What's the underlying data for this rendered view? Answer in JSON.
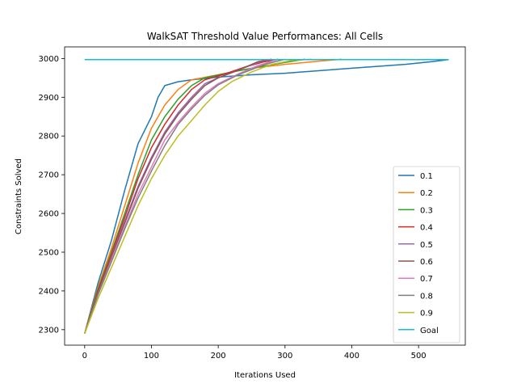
{
  "chart_data": {
    "type": "line",
    "title": "WalkSAT Threshold Value Performances: All Cells",
    "xlabel": "Iterations Used",
    "ylabel": "Constraints Solved",
    "xlim": [
      -30,
      570
    ],
    "ylim": [
      2260,
      3030
    ],
    "xticks": [
      0,
      100,
      200,
      300,
      400,
      500
    ],
    "yticks": [
      2300,
      2400,
      2500,
      2600,
      2700,
      2800,
      2900,
      3000
    ],
    "grid": false,
    "legend_position": "lower-right",
    "series": [
      {
        "name": "0.1",
        "color": "#1f77b4",
        "points": [
          [
            0,
            2290
          ],
          [
            20,
            2420
          ],
          [
            40,
            2530
          ],
          [
            60,
            2660
          ],
          [
            80,
            2780
          ],
          [
            100,
            2850
          ],
          [
            110,
            2900
          ],
          [
            120,
            2930
          ],
          [
            140,
            2940
          ],
          [
            160,
            2945
          ],
          [
            200,
            2952
          ],
          [
            250,
            2958
          ],
          [
            300,
            2962
          ],
          [
            400,
            2975
          ],
          [
            480,
            2985
          ],
          [
            520,
            2992
          ],
          [
            545,
            2997
          ]
        ]
      },
      {
        "name": "0.2",
        "color": "#ff7f0e",
        "points": [
          [
            0,
            2290
          ],
          [
            20,
            2410
          ],
          [
            40,
            2510
          ],
          [
            60,
            2620
          ],
          [
            80,
            2730
          ],
          [
            100,
            2820
          ],
          [
            120,
            2880
          ],
          [
            140,
            2920
          ],
          [
            160,
            2945
          ],
          [
            200,
            2958
          ],
          [
            250,
            2975
          ],
          [
            300,
            2985
          ],
          [
            350,
            2993
          ],
          [
            385,
            2998
          ]
        ]
      },
      {
        "name": "0.3",
        "color": "#2ca02c",
        "points": [
          [
            0,
            2290
          ],
          [
            20,
            2405
          ],
          [
            40,
            2500
          ],
          [
            60,
            2600
          ],
          [
            80,
            2700
          ],
          [
            100,
            2790
          ],
          [
            120,
            2850
          ],
          [
            140,
            2895
          ],
          [
            160,
            2930
          ],
          [
            180,
            2950
          ],
          [
            220,
            2965
          ],
          [
            260,
            2978
          ],
          [
            300,
            2990
          ],
          [
            330,
            2998
          ]
        ]
      },
      {
        "name": "0.4",
        "color": "#d62728",
        "points": [
          [
            0,
            2290
          ],
          [
            20,
            2400
          ],
          [
            40,
            2495
          ],
          [
            60,
            2590
          ],
          [
            80,
            2690
          ],
          [
            100,
            2770
          ],
          [
            120,
            2830
          ],
          [
            140,
            2880
          ],
          [
            160,
            2920
          ],
          [
            180,
            2945
          ],
          [
            210,
            2960
          ],
          [
            240,
            2978
          ],
          [
            270,
            2992
          ],
          [
            290,
            2998
          ]
        ]
      },
      {
        "name": "0.5",
        "color": "#9467bd",
        "points": [
          [
            0,
            2290
          ],
          [
            20,
            2395
          ],
          [
            40,
            2490
          ],
          [
            60,
            2580
          ],
          [
            80,
            2670
          ],
          [
            100,
            2745
          ],
          [
            120,
            2810
          ],
          [
            140,
            2860
          ],
          [
            160,
            2900
          ],
          [
            180,
            2935
          ],
          [
            200,
            2950
          ],
          [
            230,
            2970
          ],
          [
            260,
            2990
          ],
          [
            275,
            2998
          ]
        ]
      },
      {
        "name": "0.6",
        "color": "#8c564b",
        "points": [
          [
            0,
            2290
          ],
          [
            20,
            2395
          ],
          [
            40,
            2488
          ],
          [
            60,
            2575
          ],
          [
            80,
            2665
          ],
          [
            100,
            2740
          ],
          [
            120,
            2805
          ],
          [
            140,
            2855
          ],
          [
            160,
            2895
          ],
          [
            180,
            2930
          ],
          [
            200,
            2950
          ],
          [
            230,
            2970
          ],
          [
            260,
            2992
          ],
          [
            280,
            2998
          ]
        ]
      },
      {
        "name": "0.7",
        "color": "#e377c2",
        "points": [
          [
            0,
            2290
          ],
          [
            20,
            2390
          ],
          [
            40,
            2480
          ],
          [
            60,
            2565
          ],
          [
            80,
            2650
          ],
          [
            100,
            2720
          ],
          [
            120,
            2790
          ],
          [
            140,
            2835
          ],
          [
            160,
            2875
          ],
          [
            180,
            2910
          ],
          [
            200,
            2935
          ],
          [
            230,
            2960
          ],
          [
            260,
            2982
          ],
          [
            290,
            2998
          ]
        ]
      },
      {
        "name": "0.8",
        "color": "#7f7f7f",
        "points": [
          [
            0,
            2290
          ],
          [
            20,
            2390
          ],
          [
            40,
            2475
          ],
          [
            60,
            2560
          ],
          [
            80,
            2640
          ],
          [
            100,
            2710
          ],
          [
            120,
            2775
          ],
          [
            140,
            2830
          ],
          [
            160,
            2870
          ],
          [
            180,
            2905
          ],
          [
            200,
            2932
          ],
          [
            230,
            2958
          ],
          [
            270,
            2985
          ],
          [
            300,
            2998
          ]
        ]
      },
      {
        "name": "0.9",
        "color": "#bcbd22",
        "points": [
          [
            0,
            2290
          ],
          [
            20,
            2380
          ],
          [
            40,
            2460
          ],
          [
            60,
            2540
          ],
          [
            80,
            2620
          ],
          [
            100,
            2690
          ],
          [
            120,
            2750
          ],
          [
            140,
            2800
          ],
          [
            160,
            2840
          ],
          [
            180,
            2880
          ],
          [
            200,
            2915
          ],
          [
            220,
            2940
          ],
          [
            250,
            2965
          ],
          [
            280,
            2985
          ],
          [
            310,
            2995
          ],
          [
            340,
            2998
          ]
        ]
      },
      {
        "name": "Goal",
        "color": "#17becf",
        "points": [
          [
            0,
            2997
          ],
          [
            545,
            2997
          ]
        ]
      }
    ]
  }
}
